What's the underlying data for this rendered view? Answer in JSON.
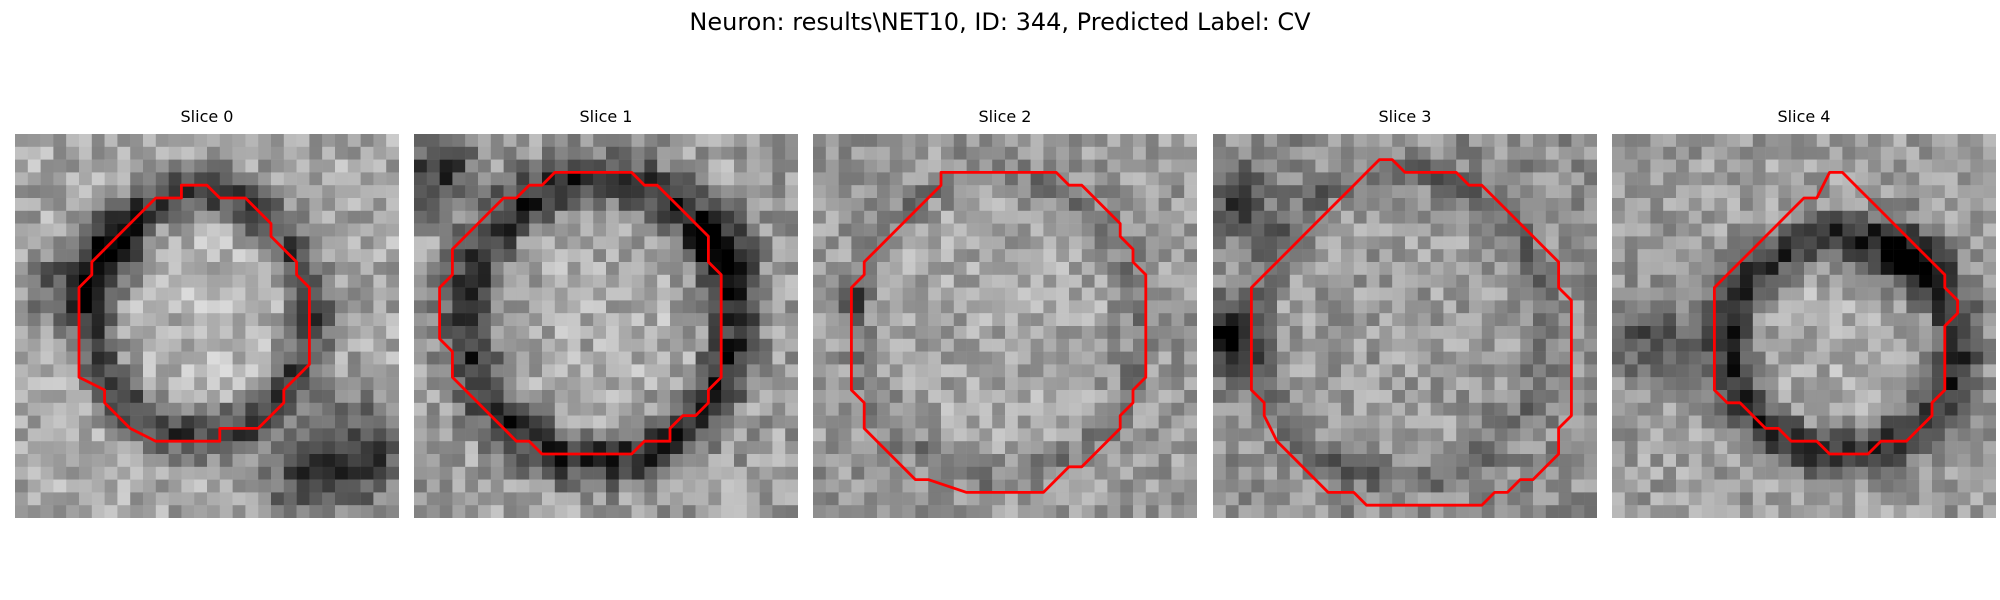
{
  "figure": {
    "title": "Neuron: results\\NET10, ID: 344, Predicted Label: CV"
  },
  "panels": [
    {
      "label": "Slice 0",
      "grid": 30,
      "ring": {
        "cx": 14.5,
        "cy": 14.0,
        "rx": 8.5,
        "ry": 9.5,
        "width": 2.6,
        "darkness": 0.42
      },
      "dark_spots": [
        {
          "x": 4,
          "y": 12,
          "r": 3,
          "d": 0.35
        },
        {
          "x": 8,
          "y": 9,
          "r": 2.5,
          "d": 0.35
        },
        {
          "x": 27,
          "y": 25,
          "r": 4,
          "d": 0.45
        },
        {
          "x": 22,
          "y": 27,
          "r": 3,
          "d": 0.3
        }
      ],
      "base": 0.66,
      "noise": 0.16,
      "seed": 11,
      "contour": [
        [
          13,
          4
        ],
        [
          15,
          4
        ],
        [
          16,
          5
        ],
        [
          18,
          5
        ],
        [
          20,
          7
        ],
        [
          20,
          8
        ],
        [
          22,
          10
        ],
        [
          22,
          11
        ],
        [
          23,
          12
        ],
        [
          23,
          18
        ],
        [
          22,
          19
        ],
        [
          21,
          20
        ],
        [
          21,
          21
        ],
        [
          19,
          23
        ],
        [
          16,
          23
        ],
        [
          16,
          24
        ],
        [
          11,
          24
        ],
        [
          9,
          23
        ],
        [
          7,
          21
        ],
        [
          7,
          20
        ],
        [
          5,
          19
        ],
        [
          5,
          12
        ],
        [
          6,
          11
        ],
        [
          6,
          10
        ],
        [
          10,
          6
        ],
        [
          11,
          5
        ],
        [
          13,
          5
        ]
      ]
    },
    {
      "label": "Slice 1",
      "grid": 30,
      "ring": {
        "cx": 14.5,
        "cy": 14.5,
        "rx": 10.5,
        "ry": 11.0,
        "width": 2.8,
        "darkness": 0.45
      },
      "dark_spots": [
        {
          "x": 2,
          "y": 3,
          "r": 3,
          "d": 0.4
        },
        {
          "x": 24,
          "y": 9,
          "r": 2.5,
          "d": 0.35
        }
      ],
      "base": 0.62,
      "noise": 0.17,
      "seed": 23,
      "contour": [
        [
          11,
          3
        ],
        [
          17,
          3
        ],
        [
          18,
          4
        ],
        [
          19,
          4
        ],
        [
          20,
          5
        ],
        [
          21,
          6
        ],
        [
          22,
          7
        ],
        [
          23,
          8
        ],
        [
          23,
          10
        ],
        [
          24,
          11
        ],
        [
          24,
          19
        ],
        [
          23,
          20
        ],
        [
          23,
          21
        ],
        [
          22,
          22
        ],
        [
          21,
          22
        ],
        [
          20,
          23
        ],
        [
          20,
          24
        ],
        [
          18,
          24
        ],
        [
          17,
          25
        ],
        [
          10,
          25
        ],
        [
          9,
          24
        ],
        [
          8,
          24
        ],
        [
          7,
          23
        ],
        [
          6,
          22
        ],
        [
          5,
          21
        ],
        [
          4,
          20
        ],
        [
          3,
          19
        ],
        [
          3,
          17
        ],
        [
          2,
          16
        ],
        [
          2,
          12
        ],
        [
          3,
          11
        ],
        [
          3,
          9
        ],
        [
          4,
          8
        ],
        [
          5,
          7
        ],
        [
          6,
          6
        ],
        [
          7,
          5
        ],
        [
          8,
          5
        ],
        [
          9,
          4
        ],
        [
          10,
          4
        ]
      ]
    },
    {
      "label": "Slice 2",
      "grid": 30,
      "ring": {
        "cx": 14.5,
        "cy": 15.0,
        "rx": 11.0,
        "ry": 12.0,
        "width": 1.5,
        "darkness": 0.12
      },
      "dark_spots": [
        {
          "x": 3,
          "y": 13,
          "r": 1,
          "d": 0.5
        }
      ],
      "base": 0.6,
      "noise": 0.15,
      "seed": 37,
      "contour": [
        [
          10,
          3
        ],
        [
          19,
          3
        ],
        [
          20,
          4
        ],
        [
          21,
          4
        ],
        [
          22,
          5
        ],
        [
          24,
          7
        ],
        [
          24,
          8
        ],
        [
          25,
          9
        ],
        [
          25,
          10
        ],
        [
          26,
          11
        ],
        [
          26,
          19
        ],
        [
          25,
          20
        ],
        [
          25,
          21
        ],
        [
          24,
          22
        ],
        [
          24,
          23
        ],
        [
          21,
          26
        ],
        [
          20,
          26
        ],
        [
          18,
          28
        ],
        [
          12,
          28
        ],
        [
          9,
          27
        ],
        [
          8,
          27
        ],
        [
          6,
          25
        ],
        [
          5,
          24
        ],
        [
          4,
          23
        ],
        [
          4,
          21
        ],
        [
          3,
          20
        ],
        [
          3,
          12
        ],
        [
          4,
          11
        ],
        [
          4,
          10
        ],
        [
          5,
          9
        ],
        [
          6,
          8
        ],
        [
          7,
          7
        ],
        [
          8,
          6
        ],
        [
          9,
          5
        ],
        [
          10,
          4
        ]
      ]
    },
    {
      "label": "Slice 3",
      "grid": 30,
      "ring": {
        "cx": 14.5,
        "cy": 15.0,
        "rx": 11.5,
        "ry": 12.0,
        "width": 1.5,
        "darkness": 0.15
      },
      "dark_spots": [
        {
          "x": 1,
          "y": 16,
          "r": 2.5,
          "d": 0.5
        },
        {
          "x": 2,
          "y": 5,
          "r": 2.5,
          "d": 0.35
        }
      ],
      "base": 0.56,
      "noise": 0.15,
      "seed": 41,
      "contour": [
        [
          13,
          2
        ],
        [
          14,
          2
        ],
        [
          15,
          3
        ],
        [
          19,
          3
        ],
        [
          20,
          4
        ],
        [
          21,
          4
        ],
        [
          22,
          5
        ],
        [
          23,
          6
        ],
        [
          24,
          7
        ],
        [
          25,
          8
        ],
        [
          26,
          9
        ],
        [
          27,
          10
        ],
        [
          27,
          12
        ],
        [
          28,
          13
        ],
        [
          28,
          22
        ],
        [
          27,
          23
        ],
        [
          27,
          25
        ],
        [
          26,
          26
        ],
        [
          25,
          27
        ],
        [
          24,
          27
        ],
        [
          23,
          28
        ],
        [
          22,
          28
        ],
        [
          21,
          29
        ],
        [
          12,
          29
        ],
        [
          11,
          28
        ],
        [
          9,
          28
        ],
        [
          8,
          27
        ],
        [
          6,
          25
        ],
        [
          5,
          24
        ],
        [
          4,
          22
        ],
        [
          4,
          21
        ],
        [
          3,
          20
        ],
        [
          3,
          12
        ],
        [
          4,
          11
        ],
        [
          5,
          10
        ],
        [
          6,
          9
        ],
        [
          7,
          8
        ],
        [
          9,
          6
        ],
        [
          10,
          5
        ],
        [
          11,
          4
        ],
        [
          12,
          3
        ]
      ]
    },
    {
      "label": "Slice 4",
      "grid": 30,
      "ring": {
        "cx": 18.0,
        "cy": 16.5,
        "rx": 9.0,
        "ry": 8.5,
        "width": 2.6,
        "darkness": 0.45
      },
      "dark_spots": [
        {
          "x": 3,
          "y": 16,
          "r": 3.5,
          "d": 0.3
        },
        {
          "x": 23,
          "y": 10,
          "r": 3,
          "d": 0.3
        }
      ],
      "base": 0.62,
      "noise": 0.15,
      "seed": 53,
      "contour": [
        [
          17,
          3
        ],
        [
          18,
          3
        ],
        [
          19,
          4
        ],
        [
          20,
          5
        ],
        [
          21,
          6
        ],
        [
          22,
          7
        ],
        [
          23,
          8
        ],
        [
          24,
          9
        ],
        [
          25,
          10
        ],
        [
          26,
          11
        ],
        [
          26,
          12
        ],
        [
          27,
          13
        ],
        [
          27,
          14
        ],
        [
          26,
          15
        ],
        [
          26,
          20
        ],
        [
          25,
          21
        ],
        [
          25,
          22
        ],
        [
          24,
          23
        ],
        [
          23,
          24
        ],
        [
          21,
          24
        ],
        [
          20,
          25
        ],
        [
          19,
          25
        ],
        [
          18,
          25
        ],
        [
          17,
          25
        ],
        [
          16,
          24
        ],
        [
          14,
          24
        ],
        [
          13,
          23
        ],
        [
          12,
          23
        ],
        [
          11,
          22
        ],
        [
          10,
          21
        ],
        [
          9,
          21
        ],
        [
          8,
          20
        ],
        [
          8,
          16
        ],
        [
          8,
          12
        ],
        [
          9,
          11
        ],
        [
          10,
          10
        ],
        [
          11,
          9
        ],
        [
          12,
          8
        ],
        [
          13,
          7
        ],
        [
          14,
          6
        ],
        [
          15,
          5
        ],
        [
          16,
          5
        ]
      ]
    }
  ]
}
